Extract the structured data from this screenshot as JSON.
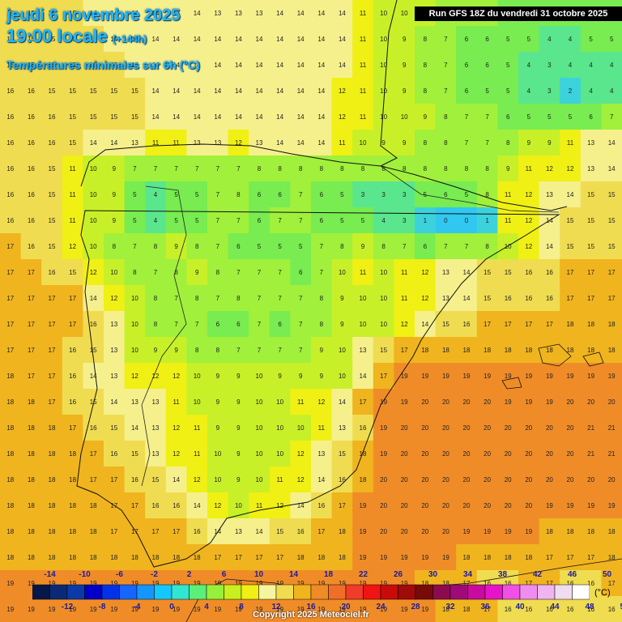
{
  "header": {
    "date": "jeudi 6 novembre 2025",
    "time": "19:00 locale",
    "lead": "(+144h)",
    "variable": "Températures minimales sur 6h (°C)",
    "run": "Run GFS 18Z du vendredi 31 octobre 2025"
  },
  "legend": {
    "unit": "(°C)",
    "top_labels": [
      "-14",
      "-10",
      "-6",
      "-2",
      "2",
      "6",
      "10",
      "14",
      "18",
      "22",
      "26",
      "30",
      "34",
      "38",
      "42",
      "46",
      "50"
    ],
    "bottom_labels": [
      "-12",
      "-8",
      "-4",
      "0",
      "4",
      "8",
      "12",
      "16",
      "20",
      "24",
      "28",
      "32",
      "36",
      "40",
      "44",
      "48",
      "52"
    ],
    "colors": [
      "#061848",
      "#0a2a78",
      "#0a3aa8",
      "#0000c8",
      "#0033e8",
      "#1466ff",
      "#1496ff",
      "#14c8ff",
      "#30e6d2",
      "#5af07a",
      "#96f03c",
      "#c8f01e",
      "#f0f014",
      "#f5f5a0",
      "#f0dc50",
      "#f0b41e",
      "#f08c28",
      "#f06e28",
      "#f03c28",
      "#f01414",
      "#c80a0a",
      "#a00a0a",
      "#780a0a",
      "#8c0a50",
      "#a00a78",
      "#c80aa0",
      "#e614c8",
      "#f050e6",
      "#f08cf0",
      "#f0b4f0",
      "#f0dcf0",
      "#ffffff"
    ]
  },
  "copyright": "Copyright 2025 Meteociel.fr",
  "map": {
    "region": "Péninsule ibérique",
    "grid_rows": [
      "15 15 15 15 14 14 14 14 13 14 13 13 13 14 14 14 14 11 10 10 9 8 7 7 6 6 5 5 6 6",
      "15 15 15 15 15 14 14 14 14 14 14 14 14 14 14 14 14 11 10 9 8 7 6 6 5 5 4 4 5 5",
      "15 15 15 15 15 15 14 14 14 14 14 14 14 14 14 14 14 11 10 9 8 7 6 6 5 4 3 4 4 4",
      "16 16 15 15 15 15 15 14 14 14 14 14 14 14 14 14 12 11 10 9 8 7 6 5 5 4 3 2 4 4",
      "16 16 16 15 15 15 15 14 14 14 14 14 14 14 14 14 12 11 10 10 9 8 7 7 6 5 5 5 6 7",
      "16 16 16 15 14 14 13 11 11 13 13 12 13 14 14 14 11 10 9 9 8 8 7 7 8 9 9 11 13 14",
      "16 16 15 11 10 9 7 7 7 7 7 7 8 8 8 8 8 8 8 8 8 8 8 8 9 11 12 12 13 14",
      "16 16 15 11 10 9 5 4 5 5 7 8 6 6 7 6 5 3 3 3 5 6 5 8 11 12 13 14 15 15",
      "16 16 15 11 10 9 5 4 5 5 7 7 6 7 7 6 5 5 4 3 1 0 0 1 11 12 14 15 15 15",
      "17 16 15 12 10 8 7 8 9 8 7 6 5 5 5 7 8 9 8 7 6 7 7 8 10 12 14 15 15 15",
      "17 17 16 15 12 10 8 7 8 9 8 7 7 7 6 7 10 11 10 11 12 13 14 15 15 16 16 17 17 17",
      "17 17 17 17 14 12 10 8 7 8 7 8 7 7 7 8 9 10 10 11 12 13 14 15 16 16 16 17 17 17",
      "17 17 17 17 16 13 10 8 7 7 6 6 7 6 7 8 9 10 10 12 14 15 16 17 17 17 17 18 18 18",
      "17 17 17 16 15 13 10 9 9 8 8 7 7 7 7 9 10 13 15 17 18 18 18 18 18 18 18 18 18 18",
      "18 17 17 16 14 13 12 12 12 10 9 9 10 9 9 9 10 14 17 19 19 19 19 19 19 19 19 19 19 19",
      "18 18 17 16 15 14 13 13 11 10 9 9 10 10 11 12 14 17 19 19 20 20 20 20 19 19 19 20 20 20",
      "18 18 18 17 16 15 14 13 12 11 9 9 10 10 10 11 13 16 19 20 20 20 20 20 20 20 20 20 21 21",
      "18 18 18 18 17 16 15 13 12 11 10 9 10 10 12 13 15 18 19 20 20 20 20 20 20 20 20 20 21 21",
      "18 18 18 18 17 17 16 15 14 12 10 9 10 11 12 14 16 18 20 20 20 20 20 20 20 20 20 20 20 20",
      "18 18 18 18 18 17 17 16 16 14 12 10 11 12 14 16 17 19 20 20 20 20 20 20 20 20 19 19 19 19",
      "18 18 18 18 18 17 17 17 17 16 14 13 14 15 16 17 18 19 20 20 20 20 19 19 19 19 18 18 18 18",
      "18 18 18 18 18 18 18 18 18 18 17 17 17 17 18 18 18 19 19 19 19 19 18 18 18 18 17 17 17 18",
      "19 19 19 19 19 19 19 19 19 19 19 19 19 19 19 19 19 19 19 19 18 18 17 16 16 17 17 16 16 17",
      "19 19 19 19 19 19 19 19 19 19 19 19 19 19 19 19 19 19 19 19 19 18 18 17 16 16 16 16 16 16"
    ]
  }
}
